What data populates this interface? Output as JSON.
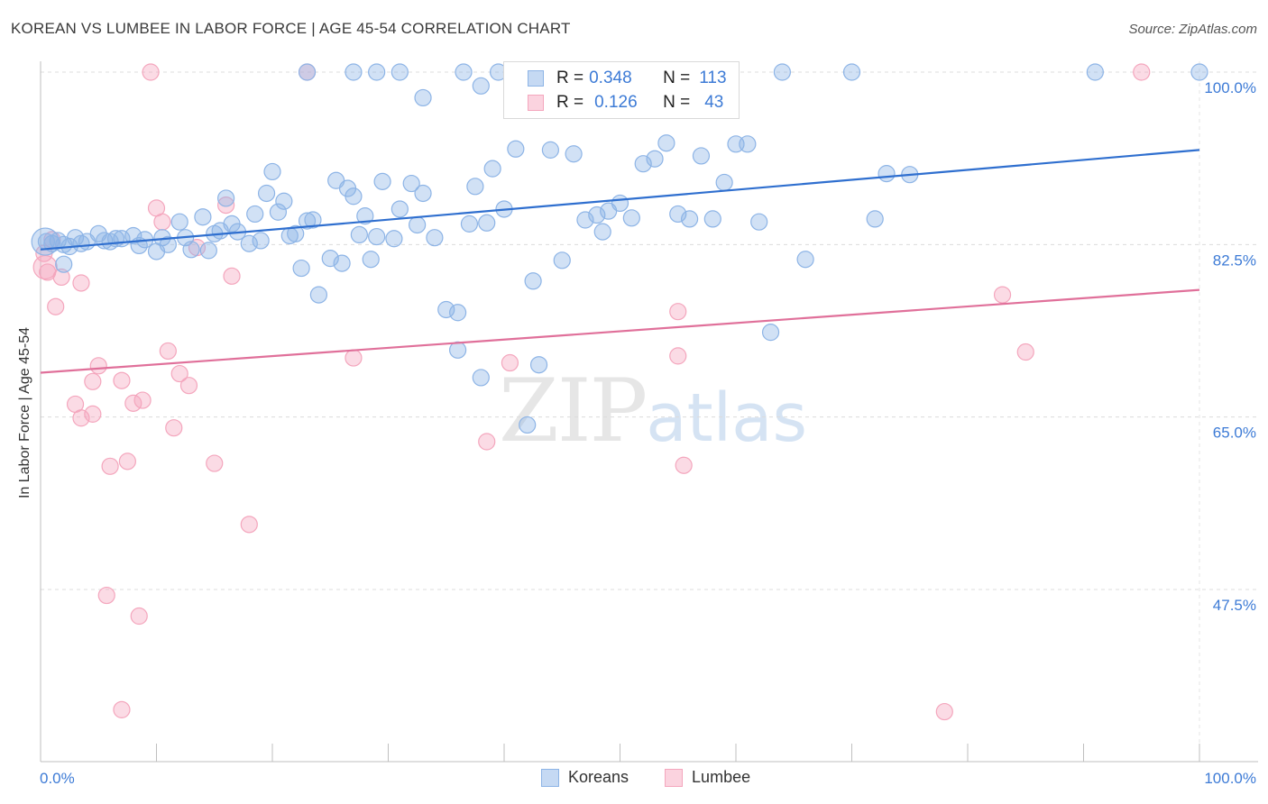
{
  "header": {
    "title": "KOREAN VS LUMBEE IN LABOR FORCE | AGE 45-54 CORRELATION CHART",
    "source": "Source: ZipAtlas.com"
  },
  "watermark": {
    "zip": "ZIP",
    "atlas": "atlas"
  },
  "legend": {
    "rows": [
      {
        "r_label": "R =",
        "r_value": "0.348",
        "n_label": "N =",
        "n_value": "113"
      },
      {
        "r_label": "R =",
        "r_value": "0.126",
        "n_label": "N =",
        "n_value": "43"
      }
    ],
    "bottom": [
      "Koreans",
      "Lumbee"
    ]
  },
  "chart_data": {
    "type": "scatter",
    "title": "KOREAN VS LUMBEE IN LABOR FORCE | AGE 45-54 CORRELATION CHART",
    "xlabel": "",
    "ylabel": "In Labor Force | Age 45-54",
    "xlim": [
      0,
      100
    ],
    "ylim": [
      30,
      102
    ],
    "x_tick_labels": [
      "0.0%",
      "100.0%"
    ],
    "y_ticks": [
      100,
      82.5,
      65,
      47.5
    ],
    "y_tick_labels": [
      "100.0%",
      "82.5%",
      "65.0%",
      "47.5%"
    ],
    "colors": {
      "koreans": "#8db4e6",
      "koreans_line": "#2f6fcf",
      "lumbee": "#f4a6bd",
      "lumbee_line": "#e0709a",
      "tick": "#3d7bd6"
    },
    "series": [
      {
        "name": "Koreans",
        "R": 0.348,
        "N": 113,
        "trend": [
          [
            0,
            82.0
          ],
          [
            100,
            92.1
          ]
        ],
        "points": [
          [
            0.5,
            82.8
          ],
          [
            1,
            82.6
          ],
          [
            1.5,
            82.9
          ],
          [
            2,
            82.5
          ],
          [
            2.5,
            82.3
          ],
          [
            3,
            83.2
          ],
          [
            3.5,
            82.6
          ],
          [
            4,
            82.8
          ],
          [
            5,
            83.6
          ],
          [
            5.5,
            82.9
          ],
          [
            6,
            82.8
          ],
          [
            7,
            83.1
          ],
          [
            8,
            83.4
          ],
          [
            8.5,
            82.4
          ],
          [
            9,
            83.0
          ],
          [
            10,
            81.8
          ],
          [
            10.5,
            83.2
          ],
          [
            11,
            82.5
          ],
          [
            12,
            84.8
          ],
          [
            12.5,
            83.2
          ],
          [
            13,
            82.0
          ],
          [
            14,
            85.3
          ],
          [
            14.5,
            81.9
          ],
          [
            15,
            83.6
          ],
          [
            15.5,
            83.9
          ],
          [
            16,
            87.2
          ],
          [
            16.5,
            84.6
          ],
          [
            17,
            83.8
          ],
          [
            18,
            82.6
          ],
          [
            18.5,
            85.6
          ],
          [
            19,
            82.9
          ],
          [
            19.5,
            87.7
          ],
          [
            20,
            89.9
          ],
          [
            20.5,
            85.8
          ],
          [
            21,
            86.9
          ],
          [
            21.5,
            83.4
          ],
          [
            22,
            83.6
          ],
          [
            22.5,
            80.1
          ],
          [
            23,
            84.9
          ],
          [
            23.5,
            85.0
          ],
          [
            24,
            77.4
          ],
          [
            25,
            81.1
          ],
          [
            25.5,
            89.0
          ],
          [
            26,
            80.6
          ],
          [
            26.5,
            88.2
          ],
          [
            27,
            87.4
          ],
          [
            27.5,
            83.5
          ],
          [
            28,
            85.4
          ],
          [
            28.5,
            81.0
          ],
          [
            29,
            83.3
          ],
          [
            29.5,
            88.9
          ],
          [
            30.5,
            83.1
          ],
          [
            31,
            86.1
          ],
          [
            32,
            88.7
          ],
          [
            32.5,
            84.5
          ],
          [
            33,
            87.7
          ],
          [
            34,
            83.2
          ],
          [
            35,
            75.9
          ],
          [
            36,
            71.8
          ],
          [
            36,
            75.6
          ],
          [
            37,
            84.6
          ],
          [
            37.5,
            88.4
          ],
          [
            38,
            98.6
          ],
          [
            38,
            69.0
          ],
          [
            38.5,
            84.7
          ],
          [
            39,
            90.2
          ],
          [
            40,
            86.1
          ],
          [
            41,
            92.2
          ],
          [
            42,
            64.2
          ],
          [
            42.5,
            78.8
          ],
          [
            43,
            70.3
          ],
          [
            44,
            92.1
          ],
          [
            45,
            80.9
          ],
          [
            46,
            91.7
          ],
          [
            47,
            85.0
          ],
          [
            48,
            85.5
          ],
          [
            48.5,
            83.8
          ],
          [
            49,
            85.9
          ],
          [
            50,
            86.7
          ],
          [
            51,
            85.2
          ],
          [
            52,
            90.7
          ],
          [
            53,
            91.2
          ],
          [
            54,
            92.8
          ],
          [
            55,
            85.6
          ],
          [
            56,
            85.1
          ],
          [
            57,
            91.5
          ],
          [
            58,
            85.1
          ],
          [
            59,
            88.8
          ],
          [
            60,
            92.7
          ],
          [
            61,
            92.7
          ],
          [
            62,
            84.8
          ],
          [
            63,
            73.6
          ],
          [
            66,
            81.0
          ],
          [
            72,
            85.1
          ],
          [
            73,
            89.7
          ],
          [
            75,
            89.6
          ],
          [
            36.5,
            100
          ],
          [
            39.5,
            100
          ],
          [
            91,
            100
          ],
          [
            100,
            100
          ],
          [
            31,
            100
          ],
          [
            33,
            97.4
          ],
          [
            48,
            100
          ],
          [
            64,
            100
          ],
          [
            70,
            100
          ],
          [
            23,
            100
          ],
          [
            27,
            100
          ],
          [
            29,
            100
          ],
          [
            44.5,
            100
          ],
          [
            2,
            80.5
          ],
          [
            6.5,
            83.1
          ]
        ]
      },
      {
        "name": "Lumbee",
        "R": 0.126,
        "N": 43,
        "trend": [
          [
            0,
            69.5
          ],
          [
            100,
            77.9
          ]
        ],
        "points": [
          [
            0.3,
            81.6
          ],
          [
            0.6,
            79.7
          ],
          [
            1,
            83.0
          ],
          [
            1.3,
            76.2
          ],
          [
            1.8,
            79.2
          ],
          [
            3,
            66.3
          ],
          [
            3.5,
            64.9
          ],
          [
            3.5,
            78.6
          ],
          [
            4.5,
            65.3
          ],
          [
            4.5,
            68.6
          ],
          [
            5,
            70.2
          ],
          [
            5.7,
            46.9
          ],
          [
            6,
            60.0
          ],
          [
            7,
            68.7
          ],
          [
            7.5,
            60.5
          ],
          [
            8,
            66.4
          ],
          [
            8.5,
            44.8
          ],
          [
            8.8,
            66.7
          ],
          [
            9.5,
            100
          ],
          [
            10,
            86.2
          ],
          [
            10.5,
            84.8
          ],
          [
            11,
            71.7
          ],
          [
            11.5,
            63.9
          ],
          [
            12,
            69.4
          ],
          [
            12.8,
            68.2
          ],
          [
            13.5,
            82.2
          ],
          [
            15,
            60.3
          ],
          [
            16,
            86.5
          ],
          [
            16.5,
            79.3
          ],
          [
            18,
            54.1
          ],
          [
            23,
            100
          ],
          [
            27,
            71.0
          ],
          [
            38.5,
            62.5
          ],
          [
            40.5,
            70.5
          ],
          [
            55,
            75.7
          ],
          [
            55,
            71.2
          ],
          [
            55.5,
            60.1
          ],
          [
            57,
            100
          ],
          [
            78,
            35.1
          ],
          [
            83,
            77.4
          ],
          [
            85,
            71.6
          ],
          [
            95,
            100
          ],
          [
            7,
            35.3
          ]
        ]
      }
    ]
  }
}
